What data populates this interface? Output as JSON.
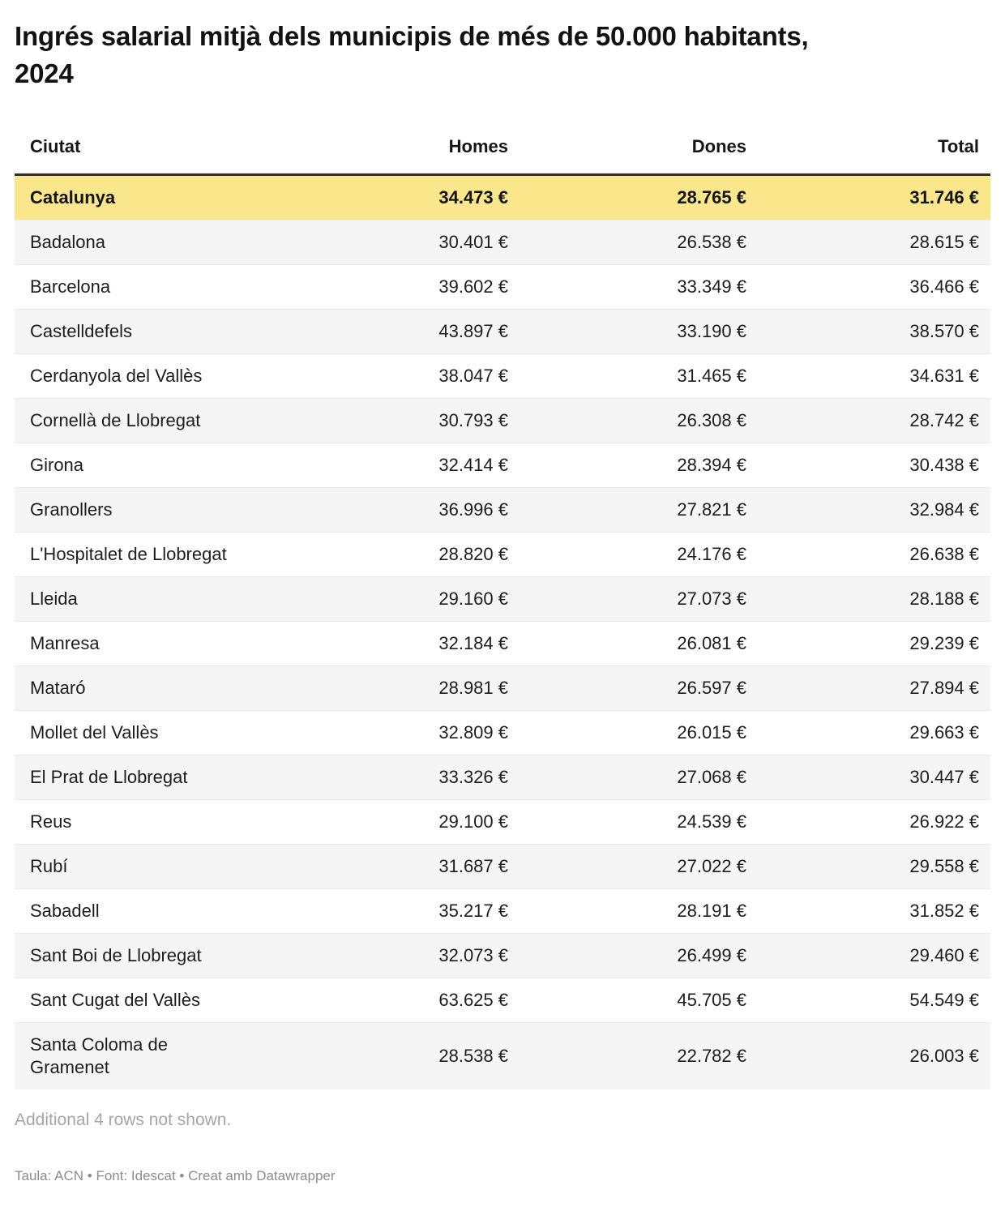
{
  "chart_data": {
    "type": "table",
    "title": "Ingrés salarial mitjà dels municipis de més de 50.000 habitants, 2024",
    "columns": [
      "Ciutat",
      "Homes",
      "Dones",
      "Total"
    ],
    "rows": [
      {
        "city": "Catalunya",
        "homes": "34.473 €",
        "dones": "28.765 €",
        "total": "31.746 €",
        "highlight": true
      },
      {
        "city": "Badalona",
        "homes": "30.401 €",
        "dones": "26.538 €",
        "total": "28.615 €",
        "highlight": false
      },
      {
        "city": "Barcelona",
        "homes": "39.602 €",
        "dones": "33.349 €",
        "total": "36.466 €",
        "highlight": false
      },
      {
        "city": "Castelldefels",
        "homes": "43.897 €",
        "dones": "33.190 €",
        "total": "38.570 €",
        "highlight": false
      },
      {
        "city": "Cerdanyola del Vallès",
        "homes": "38.047 €",
        "dones": "31.465 €",
        "total": "34.631 €",
        "highlight": false
      },
      {
        "city": "Cornellà de Llobregat",
        "homes": "30.793 €",
        "dones": "26.308 €",
        "total": "28.742 €",
        "highlight": false
      },
      {
        "city": "Girona",
        "homes": "32.414 €",
        "dones": "28.394 €",
        "total": "30.438 €",
        "highlight": false
      },
      {
        "city": "Granollers",
        "homes": "36.996 €",
        "dones": "27.821 €",
        "total": "32.984 €",
        "highlight": false
      },
      {
        "city": "L'Hospitalet de Llobregat",
        "homes": "28.820 €",
        "dones": "24.176 €",
        "total": "26.638 €",
        "highlight": false
      },
      {
        "city": "Lleida",
        "homes": "29.160 €",
        "dones": "27.073 €",
        "total": "28.188 €",
        "highlight": false
      },
      {
        "city": "Manresa",
        "homes": "32.184 €",
        "dones": "26.081 €",
        "total": "29.239 €",
        "highlight": false
      },
      {
        "city": "Mataró",
        "homes": "28.981 €",
        "dones": "26.597 €",
        "total": "27.894 €",
        "highlight": false
      },
      {
        "city": "Mollet del Vallès",
        "homes": "32.809 €",
        "dones": "26.015 €",
        "total": "29.663 €",
        "highlight": false
      },
      {
        "city": "El Prat de Llobregat",
        "homes": "33.326 €",
        "dones": "27.068 €",
        "total": "30.447 €",
        "highlight": false
      },
      {
        "city": "Reus",
        "homes": "29.100 €",
        "dones": "24.539 €",
        "total": "26.922 €",
        "highlight": false
      },
      {
        "city": "Rubí",
        "homes": "31.687 €",
        "dones": "27.022 €",
        "total": "29.558 €",
        "highlight": false
      },
      {
        "city": "Sabadell",
        "homes": "35.217 €",
        "dones": "28.191 €",
        "total": "31.852 €",
        "highlight": false
      },
      {
        "city": "Sant Boi de Llobregat",
        "homes": "32.073 €",
        "dones": "26.499 €",
        "total": "29.460 €",
        "highlight": false
      },
      {
        "city": "Sant Cugat del Vallès",
        "homes": "63.625 €",
        "dones": "45.705 €",
        "total": "54.549 €",
        "highlight": false
      },
      {
        "city": "Santa Coloma de Gramenet",
        "homes": "28.538 €",
        "dones": "22.782 €",
        "total": "26.003 €",
        "highlight": false
      }
    ],
    "note": "Additional 4 rows not shown.",
    "attribution": "Taula: ACN • Font: Idescat • Creat amb Datawrapper",
    "colors": {
      "highlight_row": "#fae78c",
      "stripe_row": "#f5f5f5",
      "header_rule": "#303030"
    },
    "layout_hints": {
      "numeric_columns_align": "right",
      "grid": "horizontal-rules-only",
      "legend_position": "none"
    }
  }
}
